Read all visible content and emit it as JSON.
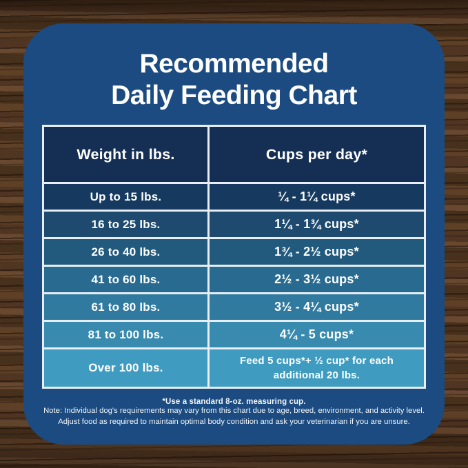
{
  "title": {
    "line1": "Recommended",
    "line2": "Daily Feeding Chart"
  },
  "chart_data": {
    "type": "table",
    "title": "Recommended Daily Feeding Chart",
    "columns": [
      "Weight in lbs.",
      "Cups per day*"
    ],
    "rows": [
      {
        "weight": "Up to 15 lbs.",
        "cups": "¼ - 1¼ cups*"
      },
      {
        "weight": "16 to 25 lbs.",
        "cups": "1¼ - 1¾  cups*"
      },
      {
        "weight": "26 to 40 lbs.",
        "cups": "1¾ - 2½ cups*"
      },
      {
        "weight": "41 to 60 lbs.",
        "cups": "2½ - 3½ cups*"
      },
      {
        "weight": "61 to 80 lbs.",
        "cups": "3½ - 4¼ cups*"
      },
      {
        "weight": "81 to 100 lbs.",
        "cups": "4¼ - 5 cups*"
      },
      {
        "weight": "Over 100 lbs.",
        "cups": "Feed 5 cups*+ ½ cup* for each additional 20 lbs."
      }
    ]
  },
  "footnote": {
    "cup_note": "*Use a standard 8-oz. measuring cup.",
    "note_line1": "Note: Individual dog's requirements may vary from this chart due to age, breed, environment, and activity level.",
    "note_line2": "Adjust food as required to maintain optimal body condition and ask your veterinarian if you are unsure."
  },
  "style": {
    "card_color": "#1b4b80",
    "header_color": "#152f54",
    "border_color": "#e9eef5",
    "title_color": "#ffffff",
    "row_colors": [
      "#163a5f",
      "#1d4a6e",
      "#225a7d",
      "#296b90",
      "#30799f",
      "#388aae",
      "#3f9cc0"
    ]
  }
}
